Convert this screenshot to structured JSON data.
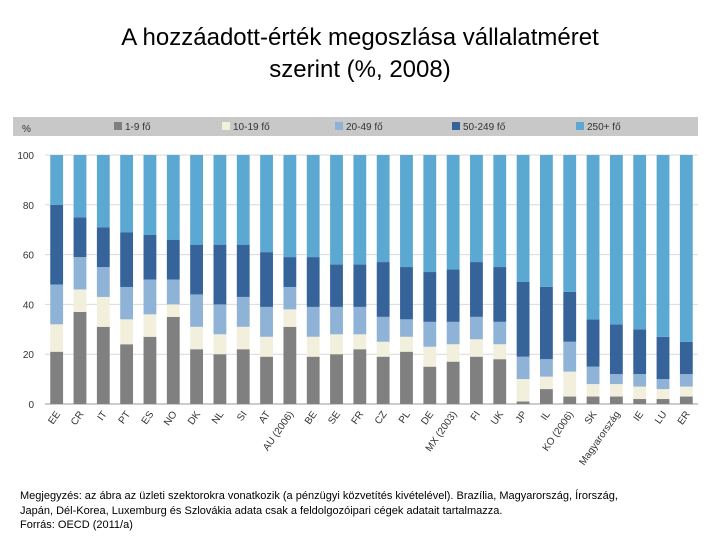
{
  "title_line1": "A hozzáadott-érték megoszlása vállalatméret",
  "title_line2": "szerint (%, 2008)",
  "notes": [
    "Megjegyzés: az ábra az üzleti szektorokra vonatkozik (a pénzügyi közvetítés kivételével). Brazília, Magyarország, Írország,",
    "Japán, Dél-Korea, Luxemburg és Szlovákia adata csak a feldolgozóipari cégek adatait tartalmazza.",
    "Forrás: OECD (2011/a)"
  ],
  "colors": {
    "s1": "#808080",
    "s2": "#f2f0dc",
    "s3": "#8fb3d6",
    "s4": "#35639a",
    "s5": "#5ba9d2",
    "legend_band": "#c8c8c8",
    "grid": "#d9d9d9"
  },
  "chart_data": {
    "type": "bar",
    "stacked": true,
    "ylabel": "%",
    "ylim": [
      0,
      100
    ],
    "yticks": [
      0,
      20,
      40,
      60,
      80,
      100
    ],
    "legend_position": "top",
    "categories": [
      "EE",
      "CR",
      "IT",
      "PT",
      "ES",
      "NO",
      "DK",
      "NL",
      "SI",
      "AT",
      "AU (2006)",
      "BE",
      "SE",
      "FR",
      "CZ",
      "PL",
      "DE",
      "MX (2003)",
      "FI",
      "UK",
      "JP",
      "IL",
      "KO (2006)",
      "SK",
      "Magyarország",
      "IE",
      "LU",
      "ER"
    ],
    "series": [
      {
        "name": "1-9 fő",
        "color": "#808080",
        "values": [
          21,
          37,
          31,
          24,
          27,
          35,
          22,
          20,
          22,
          19,
          31,
          19,
          20,
          22,
          19,
          21,
          15,
          17,
          19,
          18,
          1,
          6,
          3,
          3,
          3,
          2,
          2,
          3
        ]
      },
      {
        "name": "10-19 fő",
        "color": "#f2f0dc",
        "values": [
          11,
          9,
          12,
          10,
          9,
          5,
          9,
          8,
          9,
          8,
          7,
          8,
          8,
          6,
          6,
          6,
          8,
          7,
          7,
          6,
          9,
          5,
          10,
          5,
          5,
          5,
          4,
          4
        ]
      },
      {
        "name": "20-49 fő",
        "color": "#8fb3d6",
        "values": [
          16,
          13,
          12,
          13,
          14,
          10,
          13,
          12,
          12,
          12,
          9,
          12,
          11,
          11,
          10,
          7,
          10,
          9,
          9,
          9,
          9,
          7,
          12,
          7,
          4,
          5,
          4,
          5
        ]
      },
      {
        "name": "50-249 fő",
        "color": "#35639a",
        "values": [
          32,
          16,
          16,
          22,
          18,
          16,
          20,
          24,
          21,
          22,
          12,
          20,
          17,
          17,
          22,
          21,
          20,
          21,
          22,
          22,
          30,
          29,
          20,
          19,
          20,
          18,
          17,
          13
        ]
      },
      {
        "name": "250+ fő",
        "color": "#5ba9d2",
        "values": [
          20,
          25,
          29,
          31,
          32,
          34,
          36,
          36,
          36,
          39,
          41,
          41,
          44,
          44,
          43,
          45,
          47,
          46,
          43,
          45,
          51,
          53,
          55,
          66,
          68,
          70,
          73,
          75
        ]
      }
    ]
  }
}
